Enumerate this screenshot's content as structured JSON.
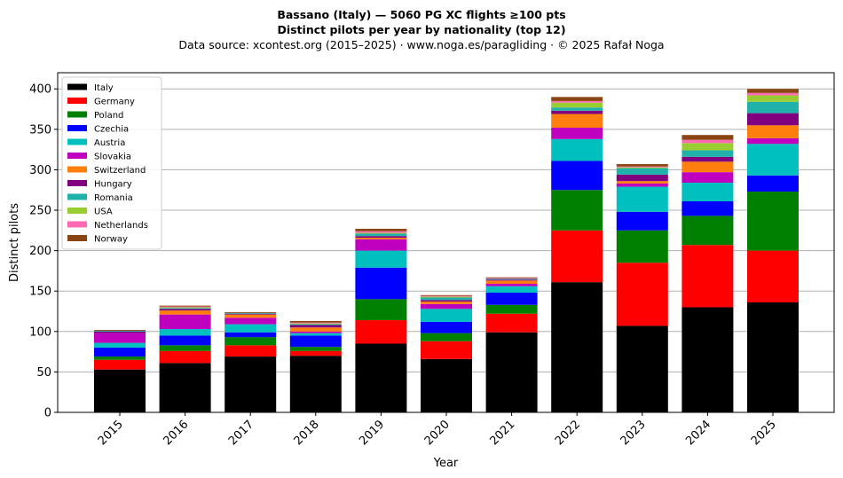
{
  "chart_data": {
    "type": "bar",
    "stacked": true,
    "title": "Bassano (Italy)  —  5060 PG XC flights ≥100 pts",
    "subtitle": "Distinct pilots per year by nationality (top 12)",
    "source_note": "Data source: xcontest.org (2015–2025)  ·  www.noga.es/paragliding  ·  © 2025 Rafał Noga",
    "xlabel": "Year",
    "ylabel": "Distinct pilots",
    "ylim": [
      0,
      420
    ],
    "yticks": [
      0,
      50,
      100,
      150,
      200,
      250,
      300,
      350,
      400
    ],
    "grid": "y",
    "legend_position": "top-left",
    "categories": [
      "2015",
      "2016",
      "2017",
      "2018",
      "2019",
      "2020",
      "2021",
      "2022",
      "2023",
      "2024",
      "2025"
    ],
    "series": [
      {
        "name": "Italy",
        "color": "#000000",
        "values": [
          53,
          61,
          69,
          70,
          85,
          66,
          99,
          161,
          107,
          130,
          136
        ]
      },
      {
        "name": "Germany",
        "color": "#ff0000",
        "values": [
          12,
          15,
          14,
          6,
          29,
          22,
          23,
          64,
          78,
          77,
          64
        ]
      },
      {
        "name": "Poland",
        "color": "#008000",
        "values": [
          4,
          7,
          10,
          5,
          26,
          10,
          11,
          50,
          40,
          36,
          73
        ]
      },
      {
        "name": "Czechia",
        "color": "#0000ff",
        "values": [
          11,
          12,
          6,
          14,
          39,
          14,
          15,
          36,
          23,
          18,
          20
        ]
      },
      {
        "name": "Austria",
        "color": "#00bfbf",
        "values": [
          6,
          8,
          10,
          3,
          21,
          16,
          8,
          27,
          31,
          23,
          39
        ]
      },
      {
        "name": "Slovakia",
        "color": "#bf00bf",
        "values": [
          12,
          18,
          8,
          2,
          14,
          6,
          3,
          14,
          4,
          13,
          7
        ]
      },
      {
        "name": "Switzerland",
        "color": "#ff7f0e",
        "values": [
          0,
          5,
          4,
          5,
          2,
          3,
          4,
          17,
          3,
          13,
          16
        ]
      },
      {
        "name": "Hungary",
        "color": "#800080",
        "values": [
          2,
          2,
          1,
          3,
          2,
          2,
          1,
          4,
          8,
          6,
          15
        ]
      },
      {
        "name": "Romania",
        "color": "#20b2aa",
        "values": [
          1,
          1,
          1,
          1,
          3,
          3,
          1,
          4,
          8,
          8,
          14
        ]
      },
      {
        "name": "USA",
        "color": "#9acd32",
        "values": [
          0,
          1,
          0,
          1,
          1,
          1,
          0,
          6,
          1,
          9,
          8
        ]
      },
      {
        "name": "Netherlands",
        "color": "#ff69b4",
        "values": [
          0,
          1,
          0,
          1,
          2,
          1,
          1,
          2,
          1,
          4,
          3
        ]
      },
      {
        "name": "Norway",
        "color": "#8b4513",
        "values": [
          1,
          1,
          1,
          2,
          3,
          1,
          1,
          5,
          3,
          6,
          5
        ]
      }
    ]
  }
}
